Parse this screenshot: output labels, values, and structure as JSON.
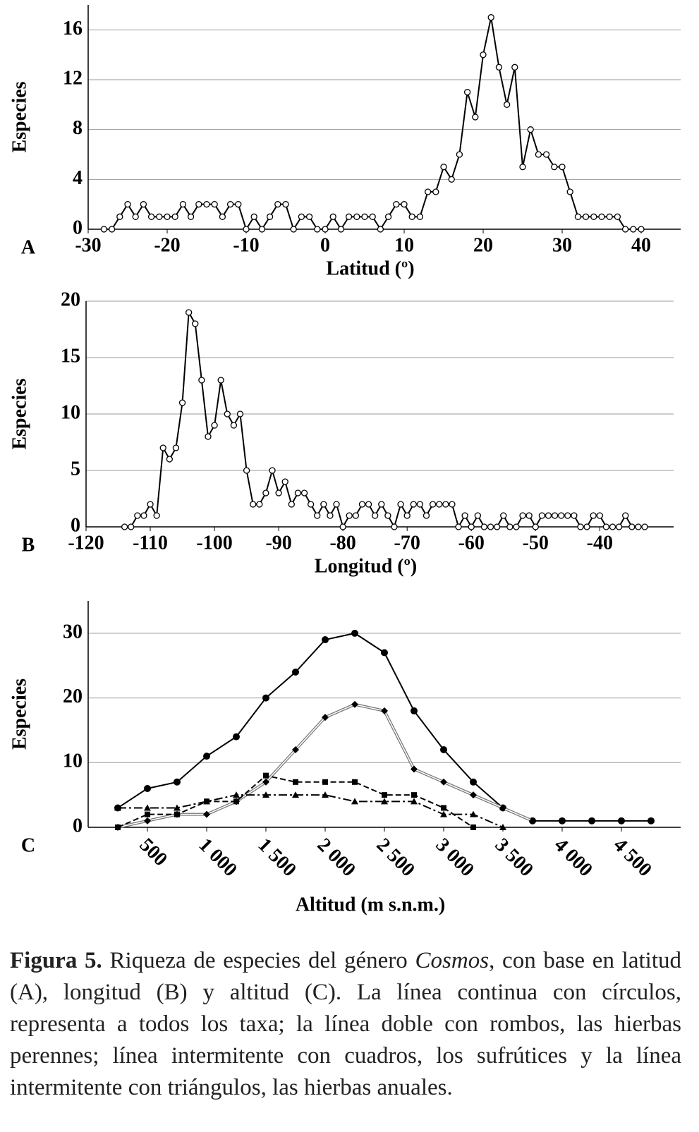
{
  "chart_data": [
    {
      "type": "line",
      "panel": "A",
      "ylabel": "Especies",
      "xlabel": "Latitud (º)",
      "xlim": [
        -30,
        45
      ],
      "ylim": [
        0,
        18
      ],
      "xticks": [
        -30,
        -20,
        -10,
        0,
        10,
        20,
        30,
        40
      ],
      "yticks": [
        0,
        4,
        8,
        12,
        16
      ],
      "grid": true,
      "x": [
        -28,
        -27,
        -26,
        -25,
        -24,
        -23,
        -22,
        -21,
        -20,
        -19,
        -18,
        -17,
        -16,
        -15,
        -14,
        -13,
        -12,
        -11,
        -10,
        -9,
        -8,
        -7,
        -6,
        -5,
        -4,
        -3,
        -2,
        -1,
        0,
        1,
        2,
        3,
        4,
        5,
        6,
        7,
        8,
        9,
        10,
        11,
        12,
        13,
        14,
        15,
        16,
        17,
        18,
        19,
        20,
        21,
        22,
        23,
        24,
        25,
        26,
        27,
        28,
        29,
        30,
        31,
        32,
        33,
        34,
        35,
        36,
        37,
        38,
        39,
        40
      ],
      "series": [
        {
          "color": "#000000",
          "marker": "circle-open",
          "line_style": "solid",
          "values": [
            0,
            0,
            1,
            2,
            1,
            2,
            1,
            1,
            1,
            1,
            2,
            1,
            2,
            2,
            2,
            1,
            2,
            2,
            0,
            1,
            0,
            1,
            2,
            2,
            0,
            1,
            1,
            0,
            0,
            1,
            0,
            1,
            1,
            1,
            1,
            0,
            1,
            2,
            2,
            1,
            1,
            3,
            3,
            5,
            4,
            6,
            11,
            9,
            14,
            17,
            13,
            10,
            13,
            5,
            8,
            6,
            6,
            5,
            5,
            3,
            1,
            1,
            1,
            1,
            1,
            1,
            0,
            0,
            0
          ]
        }
      ]
    },
    {
      "type": "line",
      "panel": "B",
      "ylabel": "Especies",
      "xlabel": "Longitud (º)",
      "xlim": [
        -120,
        -28.5
      ],
      "ylim": [
        0,
        20
      ],
      "xticks": [
        -120,
        -110,
        -100,
        -90,
        -80,
        -70,
        -60,
        -50,
        -40
      ],
      "yticks": [
        0,
        5,
        10,
        15,
        20
      ],
      "grid": true,
      "x": [
        -114,
        -113,
        -112,
        -111,
        -110,
        -109,
        -108,
        -107,
        -106,
        -105,
        -104,
        -103,
        -102,
        -101,
        -100,
        -99,
        -98,
        -97,
        -96,
        -95,
        -94,
        -93,
        -92,
        -91,
        -90,
        -89,
        -88,
        -87,
        -86,
        -85,
        -84,
        -83,
        -82,
        -81,
        -80,
        -79,
        -78,
        -77,
        -76,
        -75,
        -74,
        -73,
        -72,
        -71,
        -70,
        -69,
        -68,
        -67,
        -66,
        -65,
        -64,
        -63,
        -62,
        -61,
        -60,
        -59,
        -58,
        -57,
        -56,
        -55,
        -54,
        -53,
        -52,
        -51,
        -50,
        -49,
        -48,
        -47,
        -46,
        -45,
        -44,
        -43,
        -42,
        -41,
        -40,
        -39,
        -38,
        -37,
        -36,
        -35,
        -34,
        -33
      ],
      "series": [
        {
          "color": "#000000",
          "marker": "circle-open",
          "line_style": "solid",
          "values": [
            0,
            0,
            1,
            1,
            2,
            1,
            7,
            6,
            7,
            11,
            19,
            18,
            13,
            8,
            9,
            13,
            10,
            9,
            10,
            5,
            2,
            2,
            3,
            5,
            3,
            4,
            2,
            3,
            3,
            2,
            1,
            2,
            1,
            2,
            0,
            1,
            1,
            2,
            2,
            1,
            2,
            1,
            0,
            2,
            1,
            2,
            2,
            1,
            2,
            2,
            2,
            2,
            0,
            1,
            0,
            1,
            0,
            0,
            0,
            1,
            0,
            0,
            1,
            1,
            0,
            1,
            1,
            1,
            1,
            1,
            1,
            0,
            0,
            1,
            1,
            0,
            0,
            0,
            1,
            0,
            0,
            0
          ]
        }
      ]
    },
    {
      "type": "line",
      "panel": "C",
      "ylabel": "Especies",
      "xlabel": "Altitud (m s.n.m.)",
      "xlim": [
        0,
        5000
      ],
      "ylim": [
        0,
        35
      ],
      "yticks": [
        0,
        10,
        20,
        30
      ],
      "grid": true,
      "xtick_rotation": 45,
      "xticks": [
        {
          "value": 500,
          "label": "500"
        },
        {
          "value": 1000,
          "label": "1 000"
        },
        {
          "value": 1500,
          "label": "1 500"
        },
        {
          "value": 2000,
          "label": "2 000"
        },
        {
          "value": 2500,
          "label": "2 500"
        },
        {
          "value": 3000,
          "label": "3 000"
        },
        {
          "value": 3500,
          "label": "3 500"
        },
        {
          "value": 4000,
          "label": "4 000"
        },
        {
          "value": 4500,
          "label": "4 500"
        }
      ],
      "x": [
        250,
        500,
        750,
        1000,
        1250,
        1500,
        1750,
        2000,
        2250,
        2500,
        2750,
        3000,
        3250,
        3500,
        3750,
        4000,
        4250,
        4500,
        4750
      ],
      "series": [
        {
          "color": "#000000",
          "marker": "circle",
          "line_style": "solid",
          "values": [
            3,
            6,
            7,
            11,
            14,
            20,
            24,
            29,
            30,
            27,
            18,
            12,
            7,
            3,
            1,
            1,
            1,
            1,
            1
          ]
        },
        {
          "color": "#777777",
          "marker": "diamond",
          "line_style": "double",
          "values": [
            0,
            1,
            2,
            2,
            4,
            7,
            12,
            17,
            19,
            18,
            9,
            7,
            5,
            3,
            1,
            null,
            null,
            null,
            null
          ]
        },
        {
          "color": "#000000",
          "marker": "square",
          "line_style": "dashed",
          "values": [
            0,
            2,
            2,
            4,
            4,
            8,
            7,
            7,
            7,
            5,
            5,
            3,
            0,
            null,
            null,
            null,
            null,
            null,
            null
          ]
        },
        {
          "color": "#000000",
          "marker": "triangle",
          "line_style": "dashdot",
          "values": [
            3,
            3,
            3,
            4,
            5,
            5,
            5,
            5,
            4,
            4,
            4,
            2,
            2,
            0,
            null,
            null,
            null,
            null,
            null
          ]
        }
      ]
    }
  ],
  "caption": {
    "label": "Figura 5.",
    "text_before": " Riqueza de especies del género ",
    "italic": "Cosmos",
    "text_after": ", con base en latitud (A), longitud (B) y altitud (C). La línea continua con círculos, representa a todos los taxa; la línea doble con rombos, las hierbas perennes; línea intermitente con cuadros, los sufrútices y la línea intermitente con triángulos, las hierbas anuales."
  }
}
